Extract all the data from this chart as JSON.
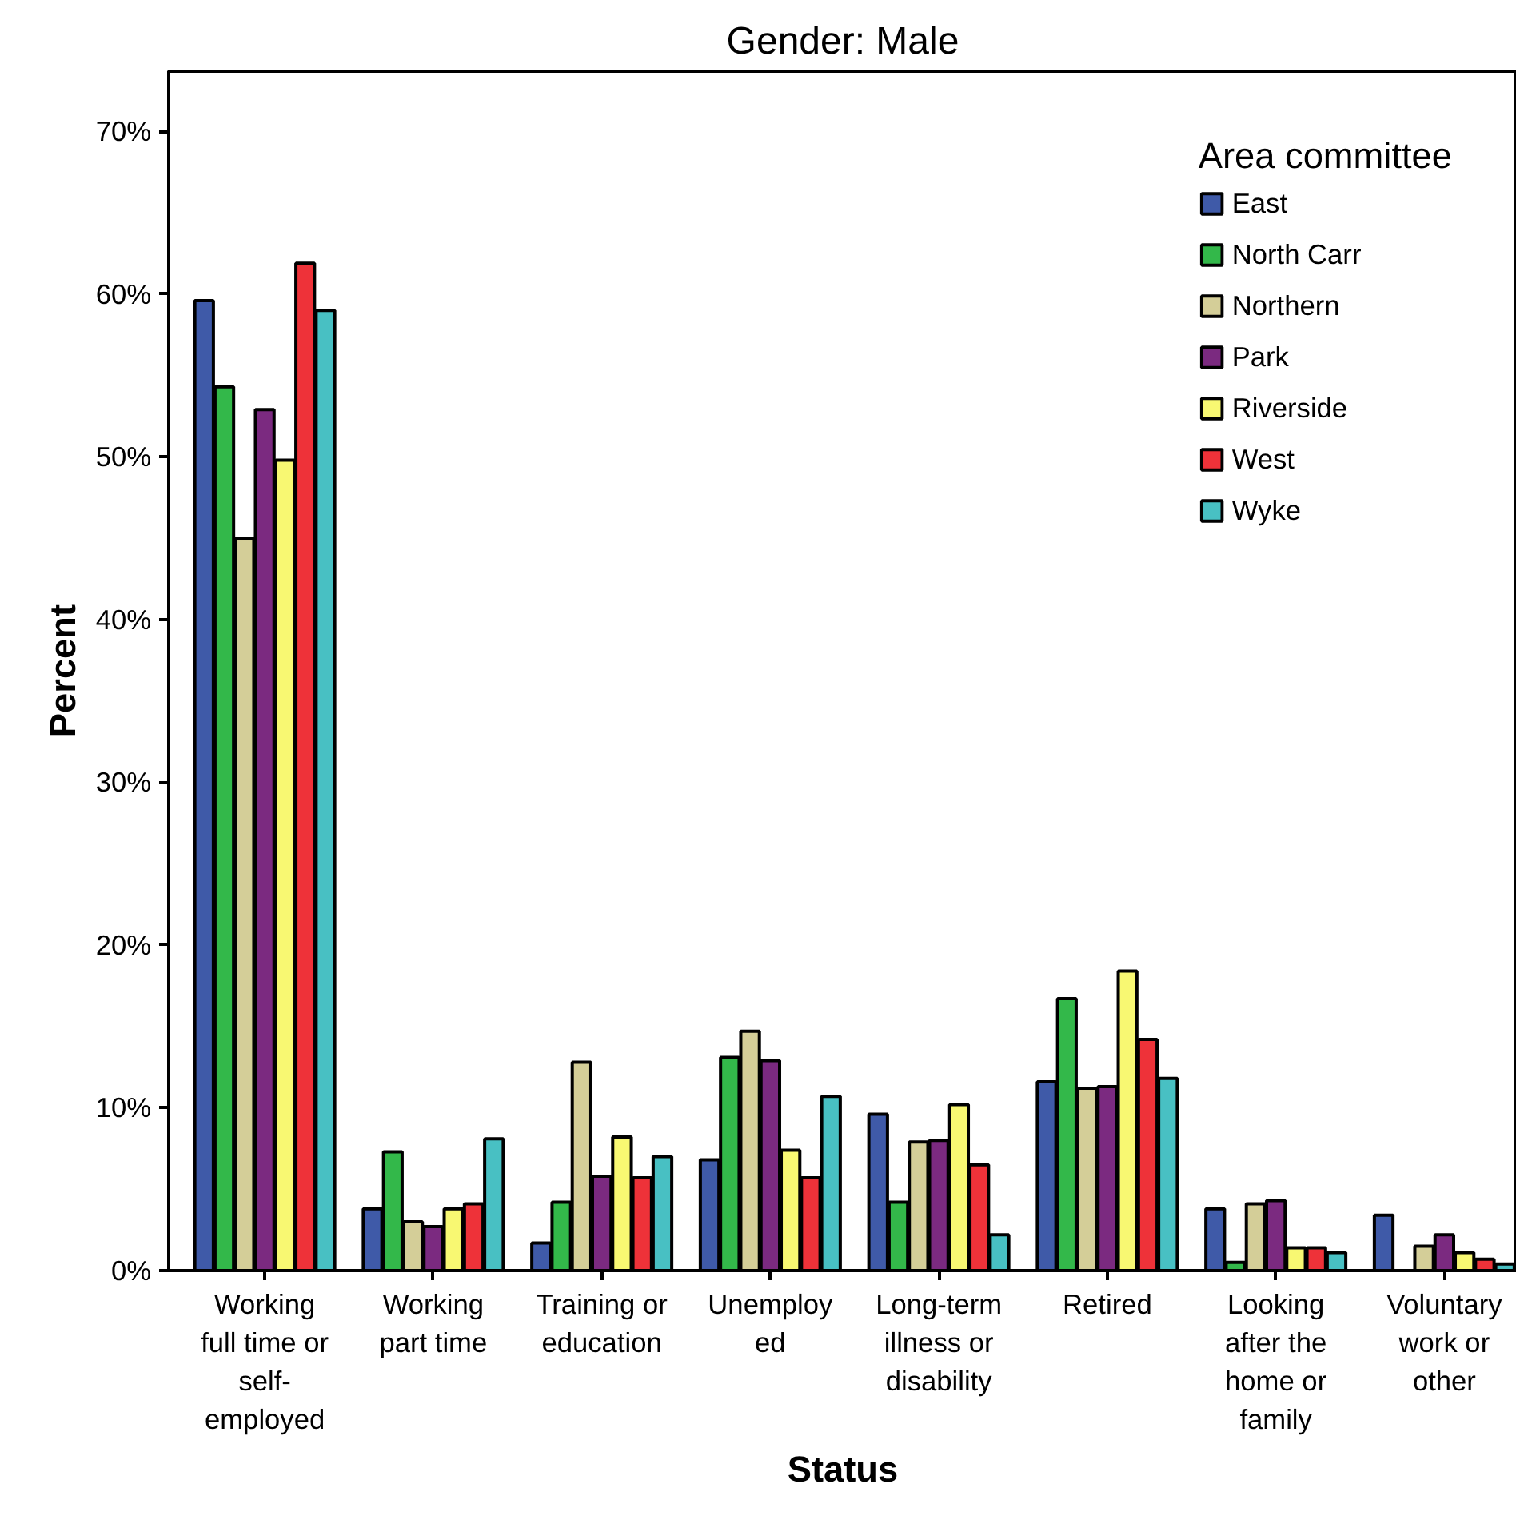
{
  "chart_data": {
    "type": "bar",
    "title": "Gender: Male",
    "xlabel": "Status",
    "ylabel": "Percent",
    "legend_title": "Area committee",
    "legend": "top right",
    "grid": false,
    "categories": [
      "Working\nfull time or\nself-\nemployed",
      "Working\npart time",
      "Training or\neducation",
      "Unemploy\ned",
      "Long-term\nillness or\ndisability",
      "Retired",
      "Looking\nafter the\nhome or\nfamily",
      "Voluntary\nwork or\nother"
    ],
    "ylim": [
      0,
      73.7
    ],
    "yticks": [
      {
        "value": 0,
        "label": "0%"
      },
      {
        "value": 10,
        "label": "10%"
      },
      {
        "value": 20,
        "label": "20%"
      },
      {
        "value": 30,
        "label": "30%"
      },
      {
        "value": 40,
        "label": "40%"
      },
      {
        "value": 50,
        "label": "50%"
      },
      {
        "value": 60,
        "label": "60%"
      },
      {
        "value": 70,
        "label": "70%"
      }
    ],
    "series": [
      {
        "name": "East",
        "color": "#3f5aa8",
        "values": [
          59.6,
          3.8,
          1.7,
          6.8,
          9.6,
          11.6,
          3.8,
          3.4
        ]
      },
      {
        "name": "North Carr",
        "color": "#33b84a",
        "values": [
          54.3,
          7.3,
          4.2,
          13.1,
          4.2,
          16.7,
          0.5,
          null
        ]
      },
      {
        "name": "Northern",
        "color": "#d4ce98",
        "values": [
          45.0,
          3.0,
          12.8,
          14.7,
          7.9,
          11.2,
          4.1,
          1.5
        ]
      },
      {
        "name": "Park",
        "color": "#7b2a80",
        "values": [
          52.9,
          2.7,
          5.8,
          12.9,
          8.0,
          11.3,
          4.3,
          2.2
        ]
      },
      {
        "name": "Riverside",
        "color": "#f8f872",
        "values": [
          49.8,
          3.8,
          8.2,
          7.4,
          10.2,
          18.4,
          1.4,
          1.1
        ]
      },
      {
        "name": "West",
        "color": "#ee3239",
        "values": [
          61.9,
          4.1,
          5.7,
          5.7,
          6.5,
          14.2,
          1.4,
          0.7
        ]
      },
      {
        "name": "Wyke",
        "color": "#48c0c3",
        "values": [
          59.0,
          8.1,
          7.0,
          10.7,
          2.2,
          11.8,
          1.1,
          0.4
        ]
      }
    ]
  }
}
